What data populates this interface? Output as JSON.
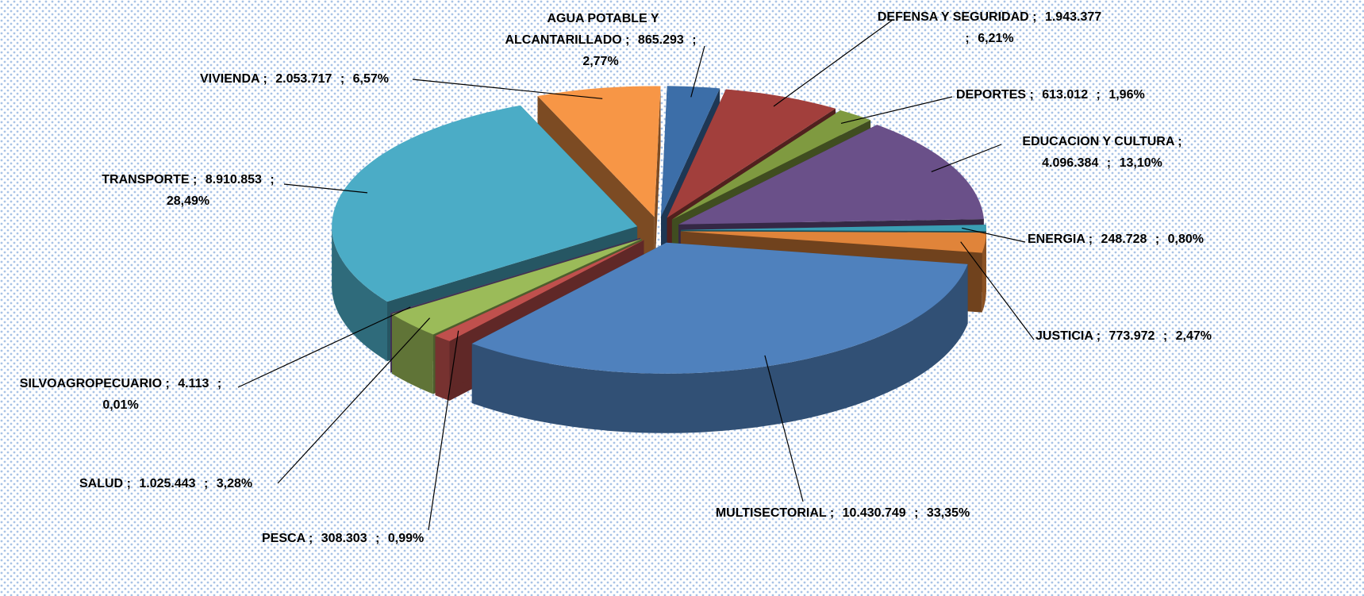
{
  "chart_data": {
    "type": "pie3d",
    "categories": [
      "AGUA POTABLE Y ALCANTARILLADO",
      "DEFENSA Y SEGURIDAD",
      "DEPORTES",
      "EDUCACION Y CULTURA",
      "ENERGIA",
      "JUSTICIA",
      "MULTISECTORIAL",
      "PESCA",
      "SALUD",
      "SILVOAGROPECUARIO",
      "TRANSPORTE",
      "VIVIENDA"
    ],
    "values": [
      865293,
      1943377,
      613012,
      4096384,
      248728,
      773972,
      10430749,
      308303,
      1025443,
      4113,
      8910853,
      2053717
    ],
    "value_labels": [
      "865.293",
      "1.943.377",
      "613.012",
      "4.096.384",
      "248.728",
      "773.972",
      "10.430.749",
      "308.303",
      "1.025.443",
      "4.113",
      "8.910.853",
      "2.053.717"
    ],
    "percent": [
      2.77,
      6.21,
      1.96,
      13.1,
      0.8,
      2.47,
      33.35,
      0.99,
      3.28,
      0.01,
      28.49,
      6.57
    ],
    "percent_labels": [
      "2,77%",
      "6,21%",
      "1,96%",
      "13,10%",
      "0,80%",
      "2,47%",
      "33,35%",
      "0,99%",
      "3,28%",
      "0,01%",
      "28,49%",
      "6,57%"
    ],
    "separator": ";",
    "colors": [
      "#3c6ea8",
      "#a23f3c",
      "#7f9a40",
      "#6a5089",
      "#3a9db3",
      "#e0843a",
      "#4f81bd",
      "#c0504d",
      "#9bbb59",
      "#8064a2",
      "#4bacc6",
      "#f79646"
    ]
  }
}
